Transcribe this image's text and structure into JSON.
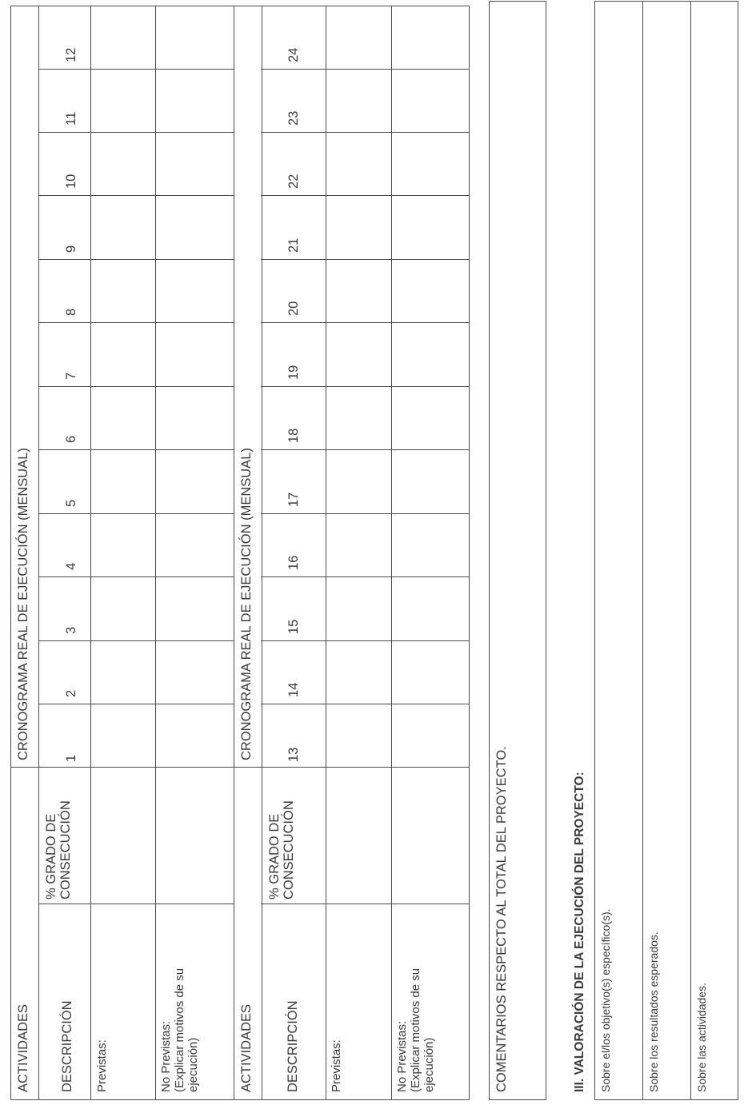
{
  "schedule_tables": [
    {
      "activities_header": "ACTIVIDADES",
      "timeline_header": "CRONOGRAMA REAL DE EJECUCIÓN (MENSUAL)",
      "description_header": "DESCRIPCIÓN",
      "achievement_header": "% GRADO DE\nCONSECUCIÓN",
      "months": [
        "1",
        "2",
        "3",
        "4",
        "5",
        "6",
        "7",
        "8",
        "9",
        "10",
        "11",
        "12"
      ],
      "planned_label": "Previstas:",
      "unplanned_label": "No Previstas:\n(Explicar motivos de su\nejecución)"
    },
    {
      "activities_header": "ACTIVIDADES",
      "timeline_header": "CRONOGRAMA REAL DE EJECUCIÓN (MENSUAL)",
      "description_header": "DESCRIPCIÓN",
      "achievement_header": "% GRADO DE\nCONSECUCIÓN",
      "months": [
        "13",
        "14",
        "15",
        "16",
        "17",
        "18",
        "19",
        "20",
        "21",
        "22",
        "23",
        "24"
      ],
      "planned_label": "Previstas:",
      "unplanned_label": "No Previstas:\n(Explicar motivos de su\nejecución)"
    }
  ],
  "comments_box": {
    "label": "COMENTARIOS RESPECTO AL TOTAL DEL PROYECTO."
  },
  "section_iii": {
    "title": "III. VALORACIÓN DE  LA EJECUCIÓN DEL PROYECTO:",
    "rows": [
      "Sobre el/los objetivo(s) específico(s).",
      "Sobre los resultados esperados.",
      "Sobre las actividades."
    ]
  }
}
